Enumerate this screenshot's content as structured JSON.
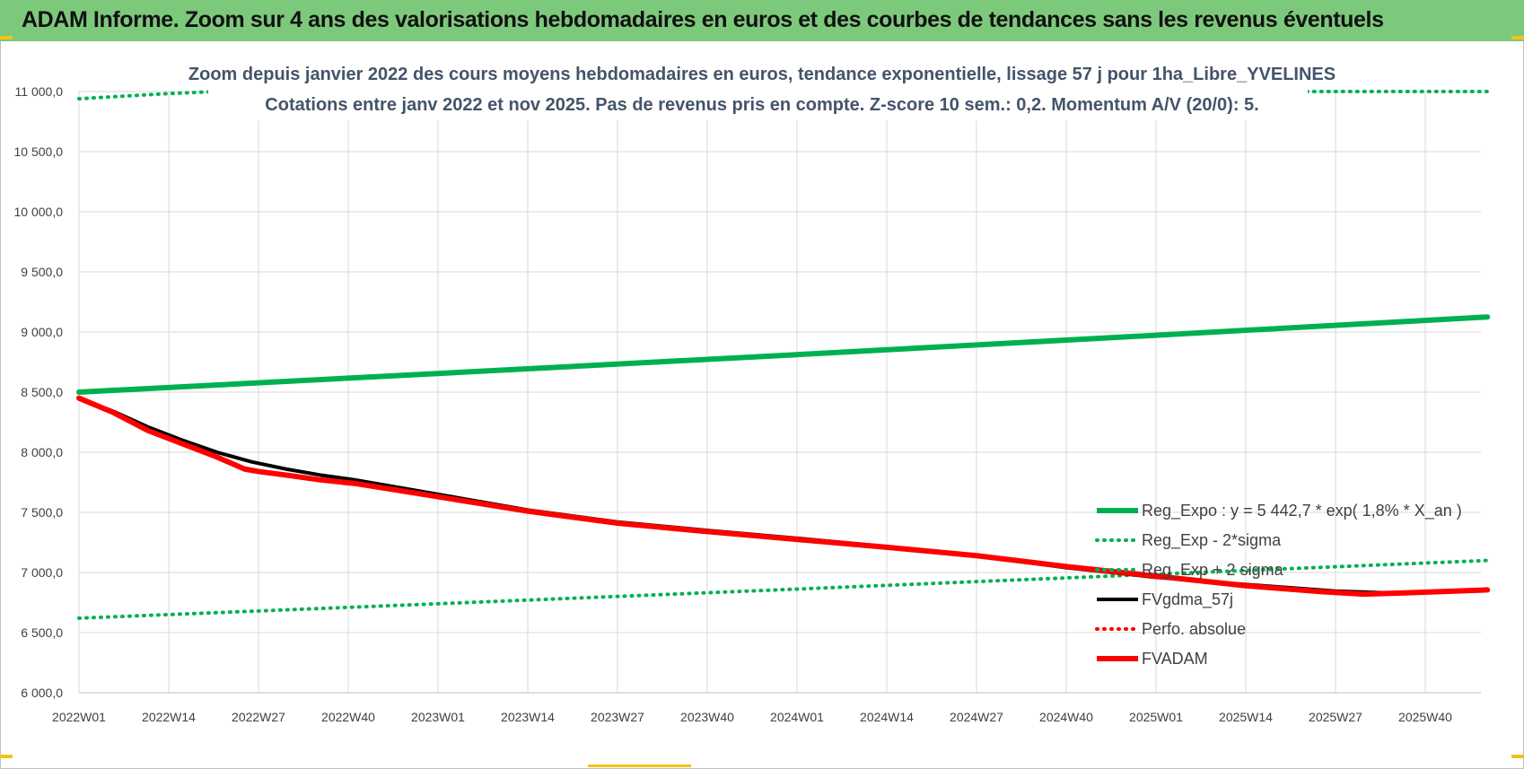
{
  "banner": {
    "title": "ADAM Informe. Zoom sur 4 ans des valorisations hebdomadaires en euros et des courbes de tendances sans les revenus éventuels"
  },
  "chart_data": {
    "type": "line",
    "title_line1": "Zoom depuis janvier 2022 des cours moyens hebdomadaires en euros, tendance exponentielle, lissage 57 j pour 1ha_Libre_YVELINES",
    "title_line2": "Cotations entre janv 2022 et nov 2025. Pas de revenus pris en compte. Z-score 10 sem.: 0,2. Momentum A/V (20/0): 5.",
    "x_ticks": [
      "2022W01",
      "2022W14",
      "2022W27",
      "2022W40",
      "2023W01",
      "2023W14",
      "2023W27",
      "2023W40",
      "2024W01",
      "2024W14",
      "2024W27",
      "2024W40",
      "2025W01",
      "2025W14",
      "2025W27",
      "2025W40"
    ],
    "x_range": [
      0,
      204
    ],
    "ylim": [
      6000,
      11000
    ],
    "y_ticks": [
      6000,
      6500,
      7000,
      7500,
      8000,
      8500,
      9000,
      9500,
      10000,
      10500,
      11000
    ],
    "y_tick_labels": [
      "6 000,0",
      "6 500,0",
      "7 000,0",
      "7 500,0",
      "8 000,0",
      "8 500,0",
      "9 000,0",
      "9 500,0",
      "10 000,0",
      "10 500,0",
      "11 000,0"
    ],
    "grid": true,
    "legend_position": "bottom-right",
    "series": [
      {
        "name": "Reg_Expo : y = 5 442,7 * exp( 1,8% *  X_an )",
        "color": "#00b050",
        "style": "solid-thick",
        "x": [
          0,
          52,
          104,
          156,
          204
        ],
        "values": [
          8500,
          8655,
          8812,
          8973,
          9125
        ]
      },
      {
        "name": "Reg_Exp - 2*sigma",
        "color": "#00b050",
        "style": "dotted",
        "x": [
          0,
          52,
          104,
          156,
          204
        ],
        "values": [
          6620,
          6740,
          6862,
          6986,
          7100
        ]
      },
      {
        "name": "Reg_Exp + 2 sigma",
        "color": "#00b050",
        "style": "dotted-clipped",
        "x": [
          0,
          12,
          20,
          180,
          204
        ],
        "values": [
          10940,
          10980,
          11000,
          11000,
          11000
        ]
      },
      {
        "name": "FVgdma_57j",
        "color": "#000000",
        "style": "solid",
        "x": [
          0,
          5,
          10,
          15,
          20,
          25,
          30,
          35,
          40,
          52,
          65,
          78,
          91,
          104,
          117,
          130,
          143,
          156,
          169,
          182,
          190,
          196,
          204
        ],
        "values": [
          8450,
          8340,
          8210,
          8100,
          8000,
          7920,
          7860,
          7810,
          7770,
          7650,
          7520,
          7420,
          7350,
          7285,
          7215,
          7140,
          7040,
          6960,
          6900,
          6845,
          6830,
          6840,
          6850
        ]
      },
      {
        "name": "Perfo. absolue",
        "color": "#ff0000",
        "style": "dotted",
        "x": [],
        "values": []
      },
      {
        "name": "FVADAM",
        "color": "#ff0000",
        "style": "solid-thick",
        "x": [
          0,
          5,
          10,
          15,
          20,
          24,
          26,
          30,
          35,
          40,
          52,
          65,
          78,
          91,
          104,
          117,
          130,
          143,
          156,
          169,
          180,
          186,
          192,
          204
        ],
        "values": [
          8450,
          8330,
          8180,
          8070,
          7960,
          7860,
          7840,
          7810,
          7770,
          7740,
          7630,
          7510,
          7410,
          7340,
          7275,
          7210,
          7140,
          7050,
          6970,
          6890,
          6840,
          6820,
          6830,
          6855
        ]
      }
    ]
  }
}
